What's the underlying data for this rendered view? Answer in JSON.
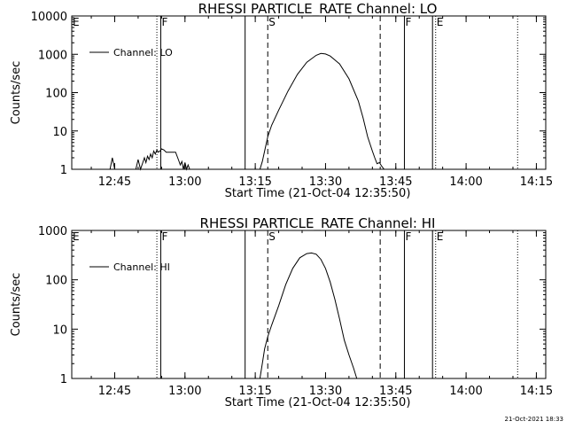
{
  "footer_timestamp": "21-Oct-2021 18:33",
  "chart_data": [
    {
      "type": "line",
      "title": "RHESSI PARTICLE_RATE Channel: LO",
      "xlabel": "Start Time (21-Oct-04 12:35:50)",
      "ylabel": "Counts/sec",
      "y_scale": "log",
      "ylim": [
        1,
        10000
      ],
      "xlim": [
        "12:35:50",
        "14:17:00"
      ],
      "x_ticks": [
        "12:45",
        "13:00",
        "13:15",
        "13:30",
        "13:45",
        "14:00",
        "14:15"
      ],
      "y_ticks": [
        "1",
        "10",
        "100",
        "1000",
        "10000"
      ],
      "legend": "Channel: LO",
      "legend_position": "top-left",
      "event_lines": [
        {
          "time": "12:35:50",
          "label": "E",
          "style": "dotted"
        },
        {
          "time": "12:54:50",
          "label": "F",
          "style": "solid"
        },
        {
          "time": "12:54:00",
          "label": "",
          "style": "dotted"
        },
        {
          "time": "13:12:50",
          "label": "",
          "style": "solid"
        },
        {
          "time": "13:17:40",
          "label": "S",
          "style": "dashed"
        },
        {
          "time": "13:41:40",
          "label": "",
          "style": "dashed"
        },
        {
          "time": "13:46:50",
          "label": "F",
          "style": "solid"
        },
        {
          "time": "13:52:50",
          "label": "",
          "style": "solid"
        },
        {
          "time": "13:53:30",
          "label": "E",
          "style": "dotted"
        },
        {
          "time": "14:11:00",
          "label": "",
          "style": "dotted"
        }
      ],
      "series": [
        {
          "name": "Channel: LO",
          "x": [
            "12:44:00",
            "12:44:30",
            "12:45:00",
            "12:49:30",
            "12:50:00",
            "12:50:30",
            "12:51:00",
            "12:51:20",
            "12:51:40",
            "12:52:00",
            "12:52:20",
            "12:52:40",
            "12:53:00",
            "12:53:20",
            "12:53:40",
            "12:54:00",
            "12:54:20",
            "12:54:40",
            "12:55:00",
            "12:55:30",
            "12:56:00",
            "12:57:00",
            "12:58:00",
            "12:58:40",
            "12:59:00",
            "12:59:20",
            "12:59:40",
            "13:00:00",
            "13:00:20",
            "13:00:40",
            "13:01:00",
            "13:16:00",
            "13:16:30",
            "13:17:00",
            "13:17:40",
            "13:18:30",
            "13:20:00",
            "13:22:00",
            "13:24:00",
            "13:26:00",
            "13:28:00",
            "13:29:00",
            "13:30:00",
            "13:31:00",
            "13:33:00",
            "13:35:00",
            "13:37:00",
            "13:38:00",
            "13:39:00",
            "13:40:00",
            "13:40:30",
            "13:41:00",
            "13:41:30",
            "13:42:00",
            "13:42:30"
          ],
          "y": [
            1,
            2,
            1,
            1,
            1.8,
            1,
            1.5,
            2,
            1.5,
            2.2,
            1.8,
            2.5,
            2,
            3,
            2.5,
            3.2,
            2.8,
            3,
            3.4,
            3.2,
            2.8,
            2.8,
            2.8,
            1.7,
            1.3,
            1.6,
            1,
            1.5,
            1,
            1.3,
            1,
            1,
            1.6,
            3,
            7,
            14,
            35,
            110,
            300,
            620,
            940,
            1050,
            1020,
            900,
            560,
            230,
            60,
            22,
            7,
            3,
            2,
            1.4,
            1.5,
            1.2,
            1
          ]
        }
      ]
    },
    {
      "type": "line",
      "title": "RHESSI PARTICLE_RATE Channel: HI",
      "xlabel": "Start Time (21-Oct-04 12:35:50)",
      "ylabel": "Counts/sec",
      "y_scale": "log",
      "ylim": [
        1,
        1000
      ],
      "xlim": [
        "12:35:50",
        "14:17:00"
      ],
      "x_ticks": [
        "12:45",
        "13:00",
        "13:15",
        "13:30",
        "13:45",
        "14:00",
        "14:15"
      ],
      "y_ticks": [
        "1",
        "10",
        "100",
        "1000"
      ],
      "legend": "Channel: HI",
      "legend_position": "top-left",
      "event_lines": [
        {
          "time": "12:35:50",
          "label": "E",
          "style": "dotted"
        },
        {
          "time": "12:54:50",
          "label": "F",
          "style": "solid"
        },
        {
          "time": "12:54:00",
          "label": "",
          "style": "dotted"
        },
        {
          "time": "13:12:50",
          "label": "",
          "style": "solid"
        },
        {
          "time": "13:17:40",
          "label": "S",
          "style": "dashed"
        },
        {
          "time": "13:41:40",
          "label": "",
          "style": "dashed"
        },
        {
          "time": "13:46:50",
          "label": "F",
          "style": "solid"
        },
        {
          "time": "13:52:50",
          "label": "",
          "style": "solid"
        },
        {
          "time": "13:53:30",
          "label": "E",
          "style": "dotted"
        },
        {
          "time": "14:11:00",
          "label": "",
          "style": "dotted"
        }
      ],
      "series": [
        {
          "name": "Channel: HI",
          "x": [
            "13:16:00",
            "13:16:30",
            "13:17:00",
            "13:17:40",
            "13:18:30",
            "13:20:00",
            "13:21:30",
            "13:23:00",
            "13:24:30",
            "13:26:00",
            "13:27:00",
            "13:28:00",
            "13:29:00",
            "13:30:00",
            "13:31:00",
            "13:32:00",
            "13:33:00",
            "13:34:00",
            "13:35:00",
            "13:36:00",
            "13:36:40"
          ],
          "y": [
            1,
            2,
            4,
            7,
            12,
            30,
            80,
            170,
            280,
            340,
            350,
            330,
            260,
            170,
            90,
            40,
            16,
            6,
            3,
            1.6,
            1
          ]
        }
      ]
    }
  ]
}
